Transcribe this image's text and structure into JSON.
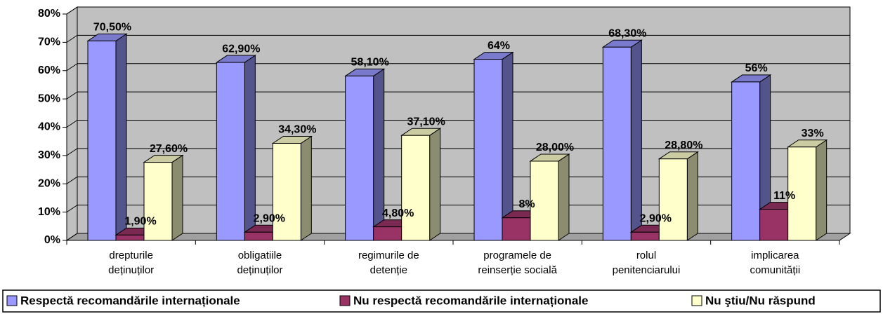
{
  "chart_data": {
    "type": "bar3d",
    "categories": [
      [
        "drepturile",
        "deținuților"
      ],
      [
        "obligatiile",
        "deținuților"
      ],
      [
        "regimurile de",
        "detenție"
      ],
      [
        "programele de",
        "reinserție socială"
      ],
      [
        "rolul",
        "penitenciarului"
      ],
      [
        "implicarea",
        "comunității"
      ]
    ],
    "series": [
      {
        "name": "Respectă recomandările internaționale",
        "color": "#9999ff",
        "values": [
          70.5,
          62.9,
          58.1,
          64,
          68.3,
          56
        ],
        "value_labels": [
          "70,50%",
          "62,90%",
          "58,10%",
          "64%",
          "68,30%",
          "56%"
        ]
      },
      {
        "name": "Nu respectă recomandările internaționale",
        "color": "#993366",
        "values": [
          1.9,
          2.9,
          4.8,
          8,
          2.9,
          11
        ],
        "value_labels": [
          "1,90%",
          "2,90%",
          "4,80%",
          "8%",
          "2,90%",
          "11%"
        ]
      },
      {
        "name": "Nu ştiu/Nu răspund",
        "color": "#ffffcc",
        "values": [
          27.6,
          34.3,
          37.1,
          28,
          28.8,
          33
        ],
        "value_labels": [
          "27,60%",
          "34,30%",
          "37,10%",
          "28,00%",
          "28,80%",
          "33%"
        ]
      }
    ],
    "ylim": [
      0,
      80
    ],
    "yticks": [
      {
        "value": 0,
        "label": "0%"
      },
      {
        "value": 10,
        "label": "10%"
      },
      {
        "value": 20,
        "label": "20%"
      },
      {
        "value": 30,
        "label": "30%"
      },
      {
        "value": 40,
        "label": "40%"
      },
      {
        "value": 50,
        "label": "50%"
      },
      {
        "value": 60,
        "label": "60%"
      },
      {
        "value": 70,
        "label": "70%"
      },
      {
        "value": 80,
        "label": "80%"
      }
    ],
    "grid": true,
    "wall_color": "#c0c0c0",
    "legend": "bottom"
  }
}
